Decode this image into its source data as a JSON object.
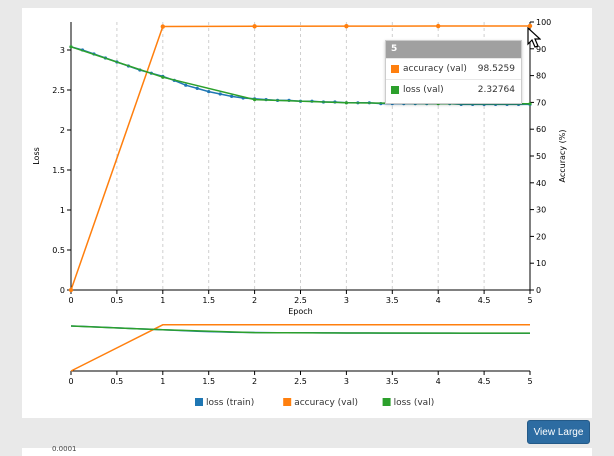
{
  "chart_data": {
    "type": "line",
    "xlabel": "Epoch",
    "ylabel": "Loss",
    "y2label": "Accuracy (%)",
    "xlim": [
      0,
      5
    ],
    "ylim": [
      0,
      3.35
    ],
    "y2lim": [
      0,
      100
    ],
    "xticks": [
      "0",
      "0.5",
      "1",
      "1.5",
      "2",
      "2.5",
      "3",
      "3.5",
      "4",
      "4.5",
      "5"
    ],
    "yticks": [
      "0",
      "0.5",
      "1",
      "1.5",
      "2",
      "2.5",
      "3"
    ],
    "y2ticks": [
      "0",
      "10",
      "20",
      "30",
      "40",
      "50",
      "60",
      "70",
      "80",
      "90",
      "100"
    ],
    "grid": "vertical",
    "legend_position": "bottom",
    "series": [
      {
        "name": "loss (train)",
        "color": "#1f77b4",
        "axis": "left",
        "x": [
          0,
          0.125,
          0.25,
          0.375,
          0.5,
          0.625,
          0.75,
          0.875,
          1,
          1.125,
          1.25,
          1.375,
          1.5,
          1.625,
          1.75,
          1.875,
          2,
          2.125,
          2.25,
          2.375,
          2.5,
          2.625,
          2.75,
          2.875,
          3,
          3.125,
          3.25,
          3.375,
          3.5,
          3.625,
          3.75,
          3.875,
          4,
          4.125,
          4.25,
          4.375,
          4.5,
          4.625,
          4.75,
          4.875,
          5
        ],
        "y": [
          3.04,
          3.0,
          2.95,
          2.9,
          2.85,
          2.8,
          2.75,
          2.71,
          2.67,
          2.62,
          2.56,
          2.52,
          2.48,
          2.45,
          2.42,
          2.4,
          2.39,
          2.38,
          2.37,
          2.37,
          2.36,
          2.36,
          2.35,
          2.35,
          2.34,
          2.34,
          2.34,
          2.33,
          2.33,
          2.33,
          2.33,
          2.33,
          2.33,
          2.33,
          2.32,
          2.32,
          2.32,
          2.32,
          2.32,
          2.32,
          2.32
        ]
      },
      {
        "name": "accuracy (val)",
        "color": "#ff7f0e",
        "axis": "right",
        "x": [
          0,
          1,
          2,
          3,
          4,
          5
        ],
        "y": [
          0,
          98.3,
          98.4,
          98.45,
          98.5,
          98.5259
        ]
      },
      {
        "name": "loss (val)",
        "color": "#2ca02c",
        "axis": "left",
        "x": [
          0,
          1,
          2,
          3,
          4,
          5
        ],
        "y": [
          3.04,
          2.66,
          2.38,
          2.34,
          2.33,
          2.32764
        ]
      }
    ]
  },
  "tooltip": {
    "header": "5",
    "rows": [
      {
        "label": "accuracy (val)",
        "value": "98.5259",
        "color": "#ff7f0e"
      },
      {
        "label": "loss (val)",
        "value": "2.32764",
        "color": "#2ca02c"
      }
    ]
  },
  "button": {
    "view_large": "View Large"
  },
  "below": {
    "partial_tick": "0.0001"
  }
}
